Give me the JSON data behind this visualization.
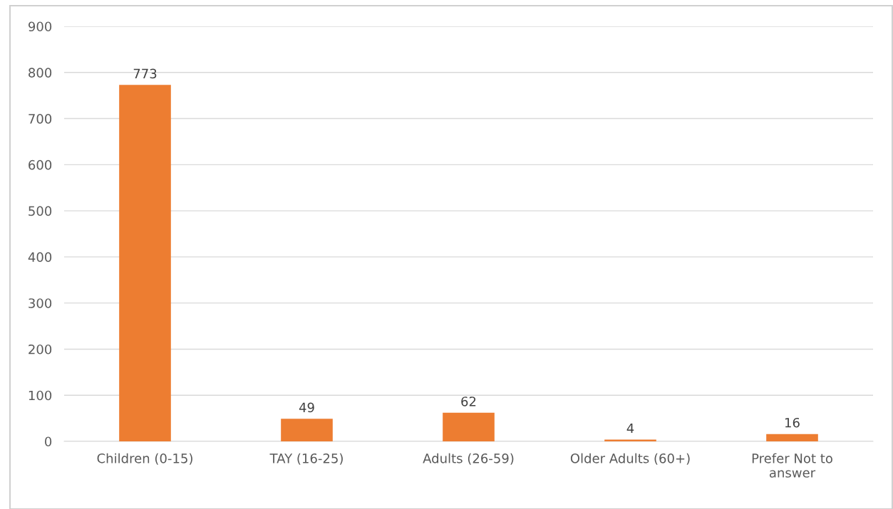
{
  "chart_data": {
    "type": "bar",
    "categories": [
      "Children (0-15)",
      "TAY (16-25)",
      "Adults (26-59)",
      "Older Adults (60+)",
      "Prefer Not to\nanswer"
    ],
    "values": [
      773,
      49,
      62,
      4,
      16
    ],
    "color": "#ed7d31",
    "ylim": [
      0,
      900
    ],
    "yticks": [
      0,
      100,
      200,
      300,
      400,
      500,
      600,
      700,
      800,
      900
    ],
    "grid": "y",
    "data_labels": true
  }
}
